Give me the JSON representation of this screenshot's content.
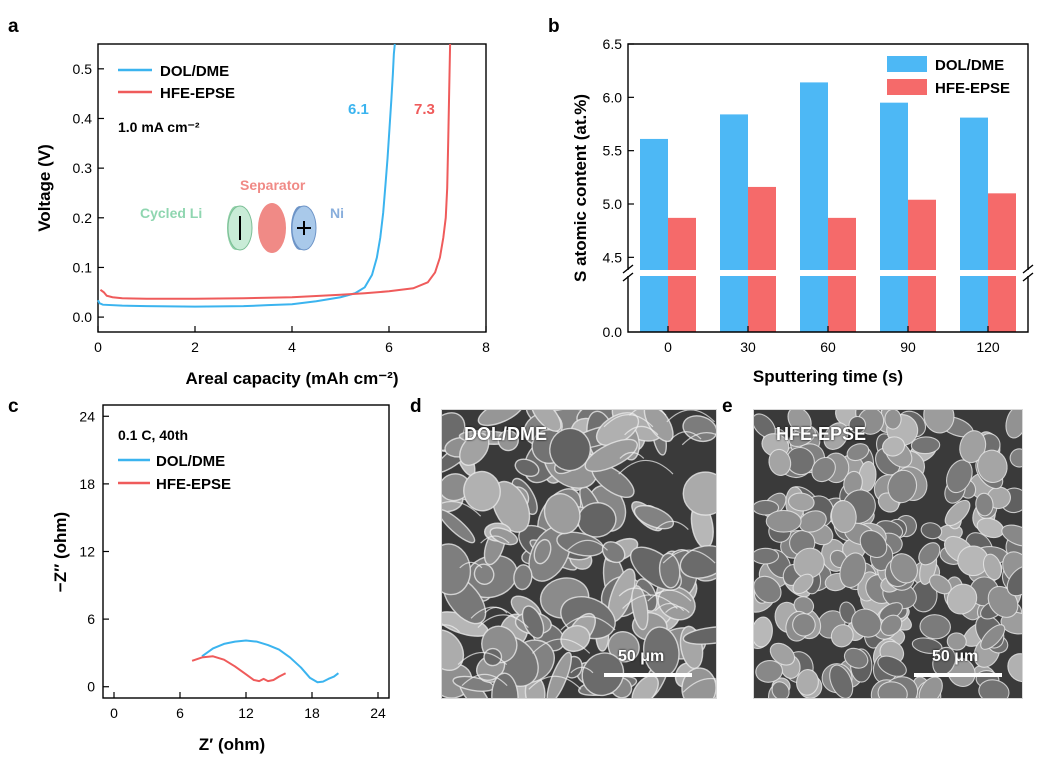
{
  "figure": {
    "panel_a": {
      "letter": "a",
      "chart_data": {
        "type": "line",
        "xlabel": "Areal capacity (mAh cm⁻²)",
        "ylabel": "Voltage (V)",
        "xlim": [
          0,
          8
        ],
        "ylim": [
          -0.03,
          0.55
        ],
        "xticks": [
          0,
          2,
          4,
          6,
          8
        ],
        "yticks": [
          0.0,
          0.1,
          0.2,
          0.3,
          0.4,
          0.5
        ],
        "condition_label": "1.0 mA cm⁻²",
        "series": [
          {
            "name": "DOL/DME",
            "color": "#3bb4ef",
            "end_label": "6.1",
            "x": [
              0,
              0.03,
              0.1,
              0.5,
              1.0,
              2.0,
              3.0,
              3.5,
              4.0,
              4.5,
              5.0,
              5.3,
              5.5,
              5.65,
              5.75,
              5.82,
              5.88,
              5.93,
              5.97,
              6.01,
              6.05,
              6.08,
              6.1,
              6.12
            ],
            "y": [
              0.034,
              0.028,
              0.025,
              0.023,
              0.022,
              0.021,
              0.022,
              0.024,
              0.026,
              0.032,
              0.04,
              0.048,
              0.06,
              0.085,
              0.12,
              0.16,
              0.21,
              0.27,
              0.32,
              0.38,
              0.44,
              0.49,
              0.53,
              0.55
            ]
          },
          {
            "name": "HFE-EPSE",
            "color": "#ef5b5b",
            "end_label": "7.3",
            "x": [
              0.05,
              0.12,
              0.18,
              0.3,
              0.5,
              1.0,
              2.0,
              3.0,
              4.0,
              5.0,
              5.5,
              6.0,
              6.5,
              6.8,
              6.95,
              7.05,
              7.12,
              7.17,
              7.2,
              7.22,
              7.24,
              7.26
            ],
            "y": [
              0.055,
              0.05,
              0.043,
              0.04,
              0.038,
              0.037,
              0.037,
              0.038,
              0.04,
              0.045,
              0.048,
              0.052,
              0.058,
              0.07,
              0.09,
              0.12,
              0.16,
              0.2,
              0.26,
              0.35,
              0.45,
              0.55
            ]
          }
        ],
        "inset_labels": {
          "left": "Cycled Li",
          "middle": "Separator",
          "right": "Ni"
        }
      }
    },
    "panel_b": {
      "letter": "b",
      "chart_data": {
        "type": "bar",
        "title": "",
        "xlabel": "Sputtering time (s)",
        "ylabel": "S atomic content (at.%)",
        "categories": [
          "0",
          "30",
          "60",
          "90",
          "120"
        ],
        "axis_break": {
          "lower_range": [
            0.0,
            0.1
          ],
          "upper_range": [
            4.4,
            6.5
          ]
        },
        "yticks_upper": [
          4.5,
          5.0,
          5.5,
          6.0,
          6.5
        ],
        "yticks_lower": [
          0.0
        ],
        "series": [
          {
            "name": "DOL/DME",
            "color": "#4db8f5",
            "values": [
              5.61,
              5.84,
              6.14,
              5.95,
              5.81
            ]
          },
          {
            "name": "HFE-EPSE",
            "color": "#f56a6a",
            "values": [
              4.87,
              5.16,
              4.87,
              5.04,
              5.1
            ]
          }
        ],
        "legend": "top-right"
      }
    },
    "panel_c": {
      "letter": "c",
      "chart_data": {
        "type": "line",
        "xlabel": "Z′ (ohm)",
        "ylabel": "−Z″ (ohm)",
        "xlim": [
          -1,
          25
        ],
        "ylim": [
          -1,
          25
        ],
        "xticks": [
          0,
          6,
          12,
          18,
          24
        ],
        "yticks": [
          0,
          6,
          12,
          18,
          24
        ],
        "condition_label": "0.1 C, 40th",
        "series": [
          {
            "name": "DOL/DME",
            "color": "#3bb4ef",
            "x": [
              8.0,
              9.0,
              10.0,
              11.0,
              12.0,
              13.0,
              14.0,
              15.0,
              16.0,
              17.0,
              17.8,
              18.5,
              19.0,
              19.5,
              20.0,
              20.4
            ],
            "y": [
              2.7,
              3.4,
              3.8,
              4.0,
              4.1,
              4.0,
              3.7,
              3.3,
              2.6,
              1.7,
              0.8,
              0.4,
              0.45,
              0.7,
              0.9,
              1.2
            ]
          },
          {
            "name": "HFE-EPSE",
            "color": "#ef5b5b",
            "x": [
              7.1,
              8.0,
              9.0,
              10.0,
              11.0,
              12.0,
              12.7,
              13.2,
              13.6,
              14.0,
              14.5,
              15.0,
              15.6
            ],
            "y": [
              2.3,
              2.6,
              2.7,
              2.4,
              1.8,
              1.1,
              0.6,
              0.5,
              0.7,
              0.5,
              0.6,
              0.9,
              1.2
            ]
          }
        ]
      }
    },
    "panel_d": {
      "letter": "d",
      "label": "DOL/DME",
      "scale": "50 μm"
    },
    "panel_e": {
      "letter": "e",
      "label": "HFE-EPSE",
      "scale": "50 μm"
    }
  }
}
